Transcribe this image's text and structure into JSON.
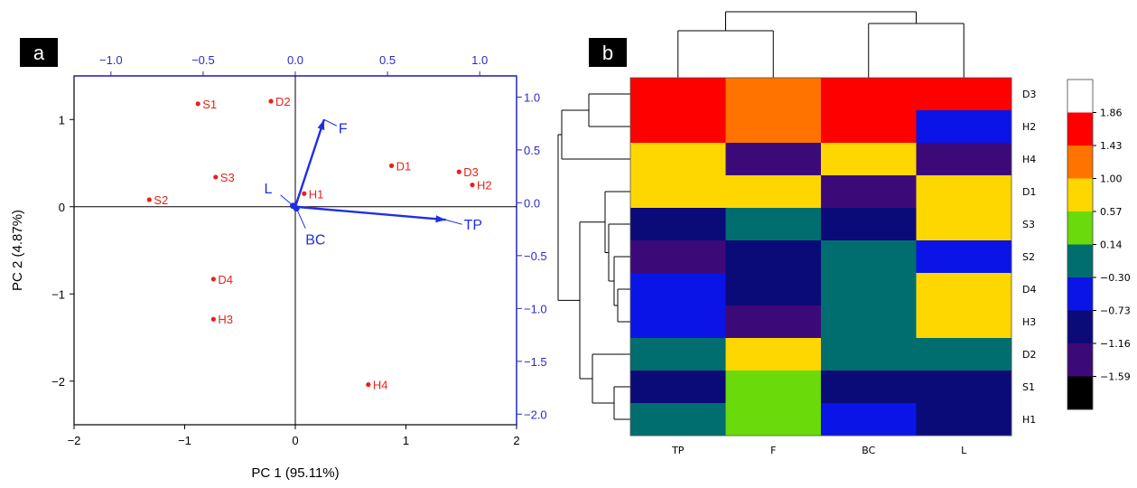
{
  "panel_a": {
    "badge": "a",
    "xlabel": "PC 1 (95.11%)",
    "ylabel": "PC 2 (4.87%)",
    "bottom_ticks": [
      "−2",
      "−1",
      "0",
      "1",
      "2"
    ],
    "left_ticks": [
      "1",
      "0",
      "−1",
      "−2"
    ],
    "top_ticks": [
      "−1.0",
      "−0.5",
      "0.0",
      "0.5",
      "1.0"
    ],
    "right_ticks": [
      "1.0",
      "0.5",
      "0.0",
      "−0.5",
      "−1.0",
      "−1.5",
      "−2.0"
    ]
  },
  "panel_b": {
    "badge": "b",
    "columns": [
      "TP",
      "F",
      "BC",
      "L"
    ],
    "rows": [
      "D3",
      "H2",
      "H4",
      "D1",
      "S3",
      "S2",
      "D4",
      "H3",
      "D2",
      "S1",
      "H1"
    ],
    "legend_labels": [
      "1.86",
      "1.43",
      "1.00",
      "0.57",
      "0.14",
      "−0.30",
      "−0.73",
      "−1.16",
      "−1.59"
    ]
  },
  "colors": {
    "score_point": "#e8211b",
    "loading_vector": "#1f2ee6",
    "secondary_axis": "#2b2bc8",
    "heat_scale": [
      "#ffffff",
      "#ff0000",
      "#ff7300",
      "#ffd700",
      "#6ada0a",
      "#006e6e",
      "#0a14e6",
      "#0a0a78",
      "#3c0a78",
      "#000000"
    ]
  },
  "chart_data": [
    {
      "type": "scatter",
      "xlabel": "PC 1 (95.11%)",
      "ylabel": "PC 2 (4.87%)",
      "xlim": [
        -2,
        2
      ],
      "ylim": [
        -2.5,
        1.5
      ],
      "secondary_xlim": [
        -1.2,
        1.2
      ],
      "secondary_ylim": [
        -2.1,
        1.2
      ],
      "grid": false,
      "scores": [
        {
          "label": "S1",
          "x": -0.88,
          "y": 1.18
        },
        {
          "label": "D2",
          "x": -0.22,
          "y": 1.21
        },
        {
          "label": "D1",
          "x": 0.87,
          "y": 0.47
        },
        {
          "label": "D3",
          "x": 1.48,
          "y": 0.4
        },
        {
          "label": "H2",
          "x": 1.6,
          "y": 0.25
        },
        {
          "label": "S3",
          "x": -0.72,
          "y": 0.34
        },
        {
          "label": "S2",
          "x": -1.32,
          "y": 0.08
        },
        {
          "label": "H1",
          "x": 0.08,
          "y": 0.15
        },
        {
          "label": "D4",
          "x": -0.74,
          "y": -0.83
        },
        {
          "label": "H3",
          "x": -0.74,
          "y": -1.29
        },
        {
          "label": "H4",
          "x": 0.66,
          "y": -2.04
        }
      ],
      "loadings": [
        {
          "label": "TP",
          "x": 1.36,
          "y": -0.15
        },
        {
          "label": "F",
          "x": 0.26,
          "y": 1.0
        },
        {
          "label": "L",
          "x": -0.02,
          "y": 0.01
        },
        {
          "label": "BC",
          "x": 0.01,
          "y": -0.02
        }
      ]
    },
    {
      "type": "heatmap",
      "columns": [
        "TP",
        "F",
        "BC",
        "L"
      ],
      "rows": [
        "D3",
        "H2",
        "H4",
        "D1",
        "S3",
        "S2",
        "D4",
        "H3",
        "D2",
        "S1",
        "H1"
      ],
      "values": [
        [
          1.6,
          1.2,
          1.6,
          1.6
        ],
        [
          1.6,
          1.2,
          1.6,
          -0.5
        ],
        [
          0.8,
          -1.4,
          0.8,
          -1.4
        ],
        [
          0.8,
          0.8,
          -1.4,
          0.8
        ],
        [
          -0.9,
          -0.1,
          -0.9,
          0.8
        ],
        [
          -1.4,
          -0.9,
          -0.1,
          -0.5
        ],
        [
          -0.5,
          -0.9,
          -0.1,
          0.8
        ],
        [
          -0.5,
          -1.4,
          -0.1,
          0.8
        ],
        [
          -0.1,
          0.8,
          -0.1,
          -0.1
        ],
        [
          -0.9,
          0.35,
          -0.9,
          -0.9
        ],
        [
          -0.1,
          0.35,
          -0.5,
          -0.9
        ]
      ],
      "colorbar": {
        "min": -2.02,
        "max": 2.29,
        "labels": [
          1.86,
          1.43,
          1.0,
          0.57,
          0.14,
          -0.3,
          -0.73,
          -1.16,
          -1.59
        ]
      }
    }
  ]
}
